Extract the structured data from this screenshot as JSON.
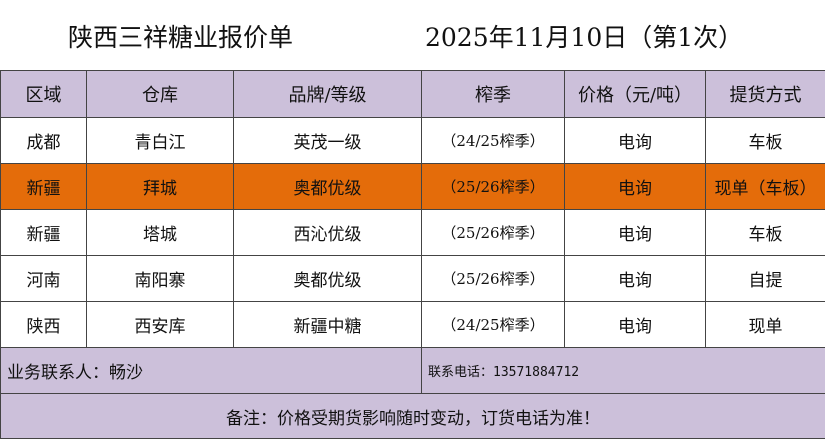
{
  "title": {
    "company": "陕西三祥糖业报价单",
    "date": "2025年11月10日（第1次）"
  },
  "table": {
    "headers": [
      "区域",
      "仓库",
      "品牌/等级",
      "榨季",
      "价格（元/吨）",
      "提货方式"
    ],
    "rows": [
      {
        "region": "成都",
        "warehouse": "青白江",
        "brand": "英茂一级",
        "season": "（24/25榨季）",
        "price": "电询",
        "delivery": "车板",
        "highlight": false
      },
      {
        "region": "新疆",
        "warehouse": "拜城",
        "brand": "奥都优级",
        "season": "（25/26榨季）",
        "price": "电询",
        "delivery": "现单（车板）",
        "highlight": true
      },
      {
        "region": "新疆",
        "warehouse": "塔城",
        "brand": "西沁优级",
        "season": "（25/26榨季）",
        "price": "电询",
        "delivery": "车板",
        "highlight": false
      },
      {
        "region": "河南",
        "warehouse": "南阳寨",
        "brand": "奥都优级",
        "season": "（25/26榨季）",
        "price": "电询",
        "delivery": "自提",
        "highlight": false
      },
      {
        "region": "陕西",
        "warehouse": "西安库",
        "brand": "新疆中糖",
        "season": "（24/25榨季）",
        "price": "电询",
        "delivery": "现单",
        "highlight": false
      }
    ]
  },
  "contact": {
    "person": "业务联系人：畅沙",
    "phone": "联系电话：13571884712"
  },
  "note": "备注：价格受期货影响随时变动，订货电话为准！",
  "colors": {
    "header_bg": "#ccc0da",
    "highlight_row": "#e46c0a",
    "border": "#444444"
  }
}
